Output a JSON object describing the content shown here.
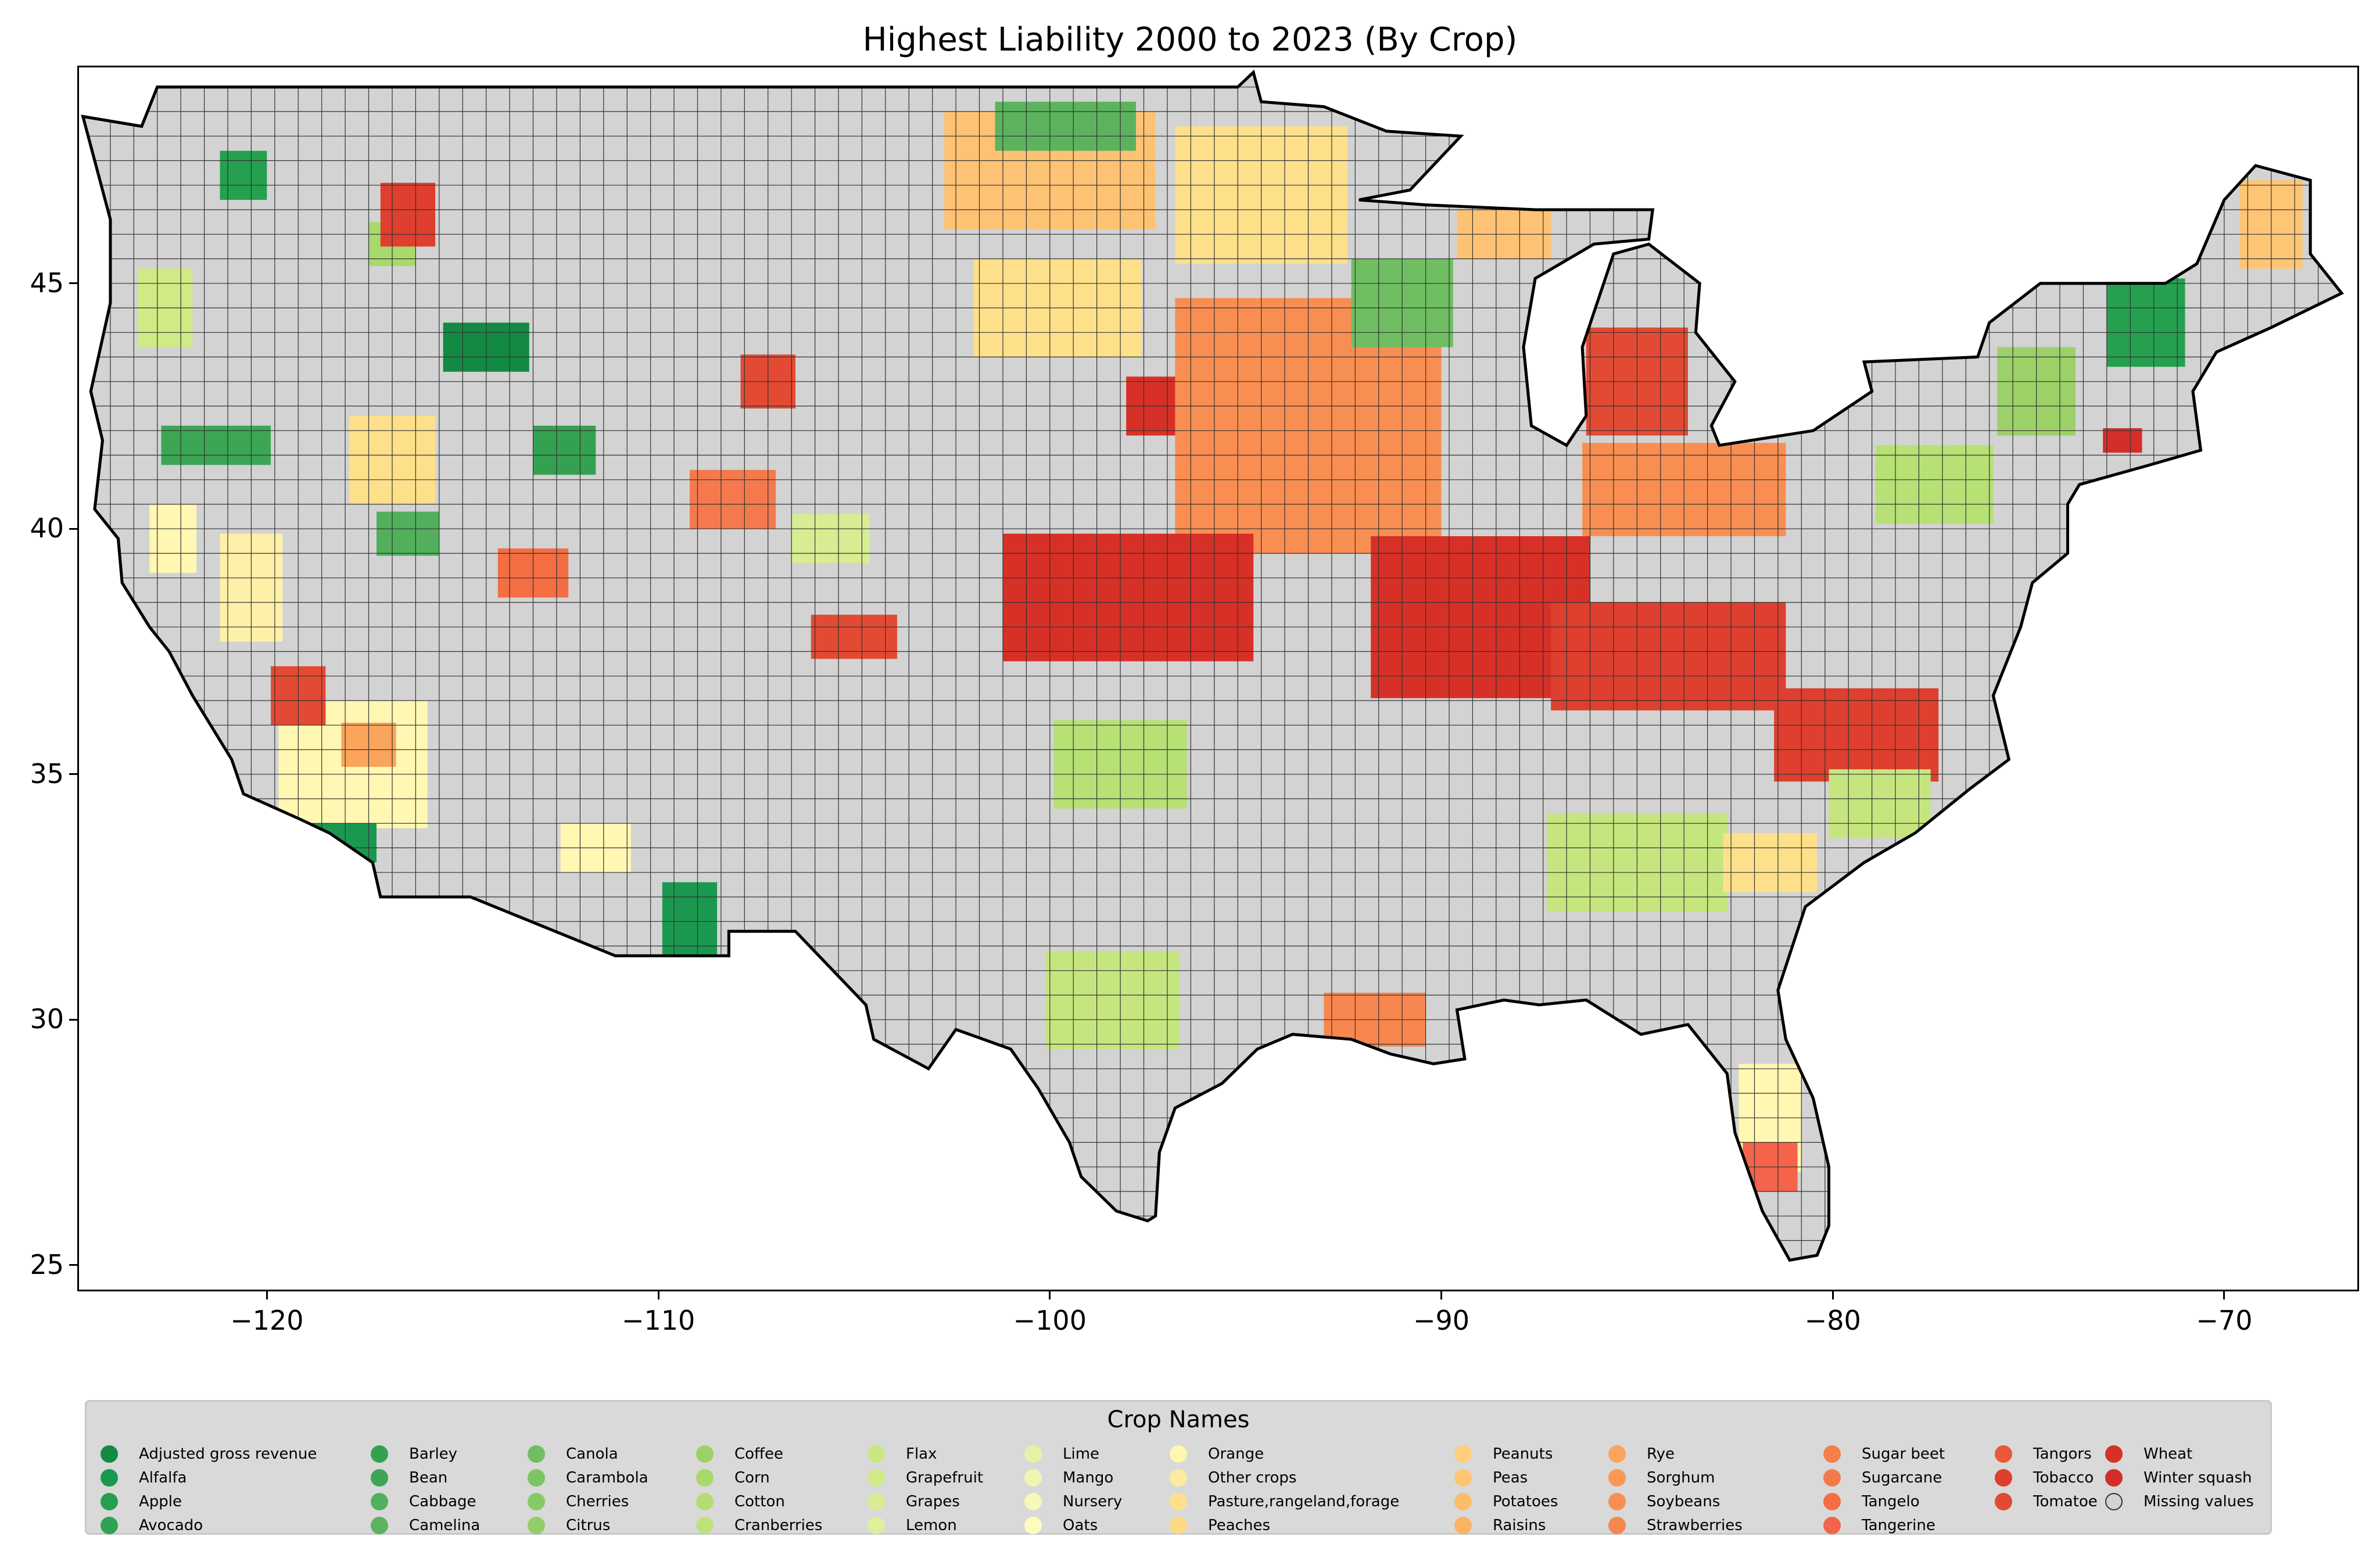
{
  "title": "Highest Liability 2000 to 2023 (By Crop)",
  "map": {
    "lon_range": [
      -124.8,
      -66.6
    ],
    "lat_range": [
      24.5,
      49.4
    ],
    "x_ticks": [
      "−120",
      "−110",
      "−100",
      "−90",
      "−80",
      "−70"
    ],
    "x_tick_values": [
      -120,
      -110,
      -100,
      -90,
      -80,
      -70
    ],
    "y_ticks": [
      "45",
      "40",
      "35",
      "30",
      "25"
    ],
    "y_tick_values": [
      45,
      40,
      35,
      30,
      25
    ],
    "land_color": "#d3d3d3",
    "border_color": "#000000",
    "regions": [
      {
        "crop": "Wheat",
        "color": "#d73027",
        "lon": -96.8,
        "lat": 42.5,
        "w": 2.5,
        "h": 1.2
      },
      {
        "crop": "Soybeans",
        "color": "#f98e52",
        "lon": -93.4,
        "lat": 42.1,
        "w": 6.8,
        "h": 5.2
      },
      {
        "crop": "Wheat",
        "color": "#d73027",
        "lon": -89.0,
        "lat": 38.2,
        "w": 5.6,
        "h": 3.3
      },
      {
        "crop": "Tobacco",
        "color": "#de3f2e",
        "lon": -84.2,
        "lat": 37.4,
        "w": 6.0,
        "h": 2.2
      },
      {
        "crop": "Tobacco",
        "color": "#de3f2e",
        "lon": -79.4,
        "lat": 35.8,
        "w": 4.2,
        "h": 1.9
      },
      {
        "crop": "Soybeans",
        "color": "#f98e52",
        "lon": -83.8,
        "lat": 40.8,
        "w": 5.2,
        "h": 1.9
      },
      {
        "crop": "Corn",
        "color": "#b7e075",
        "lon": -77.4,
        "lat": 40.9,
        "w": 3.0,
        "h": 1.6
      },
      {
        "crop": "Other crops",
        "color": "#fee08b",
        "lon": -94.6,
        "lat": 46.8,
        "w": 4.4,
        "h": 2.8
      },
      {
        "crop": "Peanuts",
        "color": "#fdc273",
        "lon": -100.0,
        "lat": 47.3,
        "w": 5.4,
        "h": 2.4
      },
      {
        "crop": "Pasture,rangeland,forage",
        "color": "#fee08b",
        "lon": -99.8,
        "lat": 44.5,
        "w": 4.3,
        "h": 2.0
      },
      {
        "crop": "Wheat",
        "color": "#d73027",
        "lon": -98.0,
        "lat": 38.6,
        "w": 6.4,
        "h": 2.6
      },
      {
        "crop": "Corn",
        "color": "#b7e075",
        "lon": -98.2,
        "lat": 35.2,
        "w": 3.4,
        "h": 1.8
      },
      {
        "crop": "Cotton",
        "color": "#c5e67e",
        "lon": -98.4,
        "lat": 30.4,
        "w": 3.4,
        "h": 2.0
      },
      {
        "crop": "Strawberries",
        "color": "#f8864f",
        "lon": -91.7,
        "lat": 30.0,
        "w": 2.6,
        "h": 1.1
      },
      {
        "crop": "Orange",
        "color": "#fff7b2",
        "lon": -81.6,
        "lat": 28.0,
        "w": 1.6,
        "h": 2.2
      },
      {
        "crop": "Tangerine",
        "color": "#f4634a",
        "lon": -81.6,
        "lat": 27.0,
        "w": 1.4,
        "h": 1.0
      },
      {
        "crop": "Cotton",
        "color": "#c5e67e",
        "lon": -85.0,
        "lat": 33.2,
        "w": 4.6,
        "h": 2.0
      },
      {
        "crop": "Cotton",
        "color": "#c5e67e",
        "lon": -78.8,
        "lat": 34.4,
        "w": 2.6,
        "h": 1.4
      },
      {
        "crop": "Peaches",
        "color": "#fee08b",
        "lon": -81.6,
        "lat": 33.2,
        "w": 2.4,
        "h": 1.2
      },
      {
        "crop": "Orange",
        "color": "#fff7b2",
        "lon": -117.8,
        "lat": 35.2,
        "w": 3.8,
        "h": 2.6
      },
      {
        "crop": "Mango",
        "color": "#fff0a8",
        "lon": -120.4,
        "lat": 38.8,
        "w": 1.6,
        "h": 2.2
      },
      {
        "crop": "Nursery",
        "color": "#fff7b2",
        "lon": -122.4,
        "lat": 39.8,
        "w": 1.2,
        "h": 1.4
      },
      {
        "crop": "Rye",
        "color": "#fba45c",
        "lon": -117.4,
        "lat": 35.6,
        "w": 1.4,
        "h": 0.9
      },
      {
        "crop": "Tomatoe",
        "color": "#e34a33",
        "lon": -119.2,
        "lat": 36.6,
        "w": 1.4,
        "h": 1.2
      },
      {
        "crop": "Alfalfa",
        "color": "#1a9850",
        "lon": -118.4,
        "lat": 33.6,
        "w": 2.4,
        "h": 0.8
      },
      {
        "crop": "Apple",
        "color": "#24a04f",
        "lon": -120.6,
        "lat": 47.2,
        "w": 1.2,
        "h": 1.0
      },
      {
        "crop": "Citrus",
        "color": "#a8d96b",
        "lon": -116.8,
        "lat": 45.8,
        "w": 1.2,
        "h": 0.9
      },
      {
        "crop": "Bean",
        "color": "#3ca655",
        "lon": -121.3,
        "lat": 41.7,
        "w": 2.8,
        "h": 0.8
      },
      {
        "crop": "Flax",
        "color": "#d0ea86",
        "lon": -122.6,
        "lat": 44.5,
        "w": 1.4,
        "h": 1.6
      },
      {
        "crop": "Adjusted gross revenue",
        "color": "#138a43",
        "lon": -114.4,
        "lat": 43.7,
        "w": 2.2,
        "h": 1.0
      },
      {
        "crop": "Tobacco",
        "color": "#de3f2e",
        "lon": -116.4,
        "lat": 46.4,
        "w": 1.4,
        "h": 1.3
      },
      {
        "crop": "Barley",
        "color": "#34a150",
        "lon": -112.4,
        "lat": 41.6,
        "w": 1.6,
        "h": 1.0
      },
      {
        "crop": "Sugarcane",
        "color": "#f47a4e",
        "lon": -108.1,
        "lat": 40.6,
        "w": 2.2,
        "h": 1.2
      },
      {
        "crop": "Tomatoe",
        "color": "#e34a33",
        "lon": -107.2,
        "lat": 43.0,
        "w": 1.4,
        "h": 1.1
      },
      {
        "crop": "Pasture,rangeland,forage",
        "color": "#fee08b",
        "lon": -116.8,
        "lat": 41.4,
        "w": 2.2,
        "h": 1.8
      },
      {
        "crop": "Sugar beet",
        "color": "#f46d43",
        "lon": -113.2,
        "lat": 39.1,
        "w": 1.8,
        "h": 1.0
      },
      {
        "crop": "Cabbage",
        "color": "#52b05c",
        "lon": -116.4,
        "lat": 39.9,
        "w": 1.6,
        "h": 0.9
      },
      {
        "crop": "Alfalfa",
        "color": "#1a9850",
        "lon": -109.2,
        "lat": 31.9,
        "w": 1.4,
        "h": 1.8
      },
      {
        "crop": "Orange",
        "color": "#fff7b2",
        "lon": -111.6,
        "lat": 33.5,
        "w": 1.8,
        "h": 1.0
      },
      {
        "crop": "Tomatoe",
        "color": "#e34a33",
        "lon": -105.0,
        "lat": 37.8,
        "w": 2.2,
        "h": 0.9
      },
      {
        "crop": "Grapes",
        "color": "#d8ed92",
        "lon": -105.6,
        "lat": 39.8,
        "w": 2.0,
        "h": 1.0
      },
      {
        "crop": "Coffee",
        "color": "#9cd168",
        "lon": -74.8,
        "lat": 42.8,
        "w": 2.0,
        "h": 1.8
      },
      {
        "crop": "Apple",
        "color": "#24a04f",
        "lon": -72.0,
        "lat": 44.2,
        "w": 2.0,
        "h": 1.8
      },
      {
        "crop": "Peas",
        "color": "#fdc574",
        "lon": -68.8,
        "lat": 46.2,
        "w": 1.6,
        "h": 1.8
      },
      {
        "crop": "Winter squash",
        "color": "#d42e2a",
        "lon": -72.6,
        "lat": 41.8,
        "w": 1.0,
        "h": 0.5
      },
      {
        "crop": "Tomatoe",
        "color": "#e34a33",
        "lon": -85.0,
        "lat": 43.0,
        "w": 2.6,
        "h": 2.2
      },
      {
        "crop": "Canola",
        "color": "#6fbe62",
        "lon": -91.0,
        "lat": 44.6,
        "w": 2.6,
        "h": 1.8
      },
      {
        "crop": "Peanuts",
        "color": "#fdc273",
        "lon": -88.4,
        "lat": 46.0,
        "w": 2.4,
        "h": 1.0
      },
      {
        "crop": "Camelina",
        "color": "#5cb35e",
        "lon": -99.6,
        "lat": 48.2,
        "w": 3.6,
        "h": 1.0
      }
    ]
  },
  "legend": {
    "title": "Crop Names",
    "columns": [
      [
        {
          "label": "Adjusted gross revenue",
          "color": "#138a43"
        },
        {
          "label": "Alfalfa",
          "color": "#1a9850"
        },
        {
          "label": "Apple",
          "color": "#24a04f"
        },
        {
          "label": "Avocado",
          "color": "#2ea352"
        }
      ],
      [
        {
          "label": "Barley",
          "color": "#34a150"
        },
        {
          "label": "Bean",
          "color": "#3ca655"
        },
        {
          "label": "Cabbage",
          "color": "#52b05c"
        },
        {
          "label": "Camelina",
          "color": "#5cb35e"
        }
      ],
      [
        {
          "label": "Canola",
          "color": "#6fbe62"
        },
        {
          "label": "Carambola",
          "color": "#7cc466"
        },
        {
          "label": "Cherries",
          "color": "#88c967"
        },
        {
          "label": "Citrus",
          "color": "#94cd68"
        }
      ],
      [
        {
          "label": "Coffee",
          "color": "#9cd168"
        },
        {
          "label": "Corn",
          "color": "#a9d86d"
        },
        {
          "label": "Cotton",
          "color": "#b3dd73"
        },
        {
          "label": "Cranberries",
          "color": "#bde27b"
        }
      ],
      [
        {
          "label": "Flax",
          "color": "#c9e780"
        },
        {
          "label": "Grapefruit",
          "color": "#d0ea86"
        },
        {
          "label": "Grapes",
          "color": "#d8ed92"
        },
        {
          "label": "Lemon",
          "color": "#dff09b"
        }
      ],
      [
        {
          "label": "Lime",
          "color": "#e6f3a6"
        },
        {
          "label": "Mango",
          "color": "#eef6b0"
        },
        {
          "label": "Nursery",
          "color": "#f6f9b8"
        },
        {
          "label": "Oats",
          "color": "#fefcbc"
        }
      ],
      [
        {
          "label": "Orange",
          "color": "#fff6b0"
        },
        {
          "label": "Other crops",
          "color": "#fee9a0"
        },
        {
          "label": "Pasture,rangeland,forage",
          "color": "#fee08b"
        },
        {
          "label": "Peaches",
          "color": "#fed983"
        }
      ],
      [
        {
          "label": "Peanuts",
          "color": "#fdcf7c"
        },
        {
          "label": "Peas",
          "color": "#fdc574"
        },
        {
          "label": "Potatoes",
          "color": "#fdbc6c"
        },
        {
          "label": "Raisins",
          "color": "#fcb263"
        }
      ],
      [
        {
          "label": "Rye",
          "color": "#fba45c"
        },
        {
          "label": "Sorghum",
          "color": "#fa9856"
        },
        {
          "label": "Soybeans",
          "color": "#f98e52"
        },
        {
          "label": "Strawberries",
          "color": "#f8864f"
        }
      ],
      [
        {
          "label": "Sugar beet",
          "color": "#f67e4b"
        },
        {
          "label": "Sugarcane",
          "color": "#f47a4e"
        },
        {
          "label": "Tangelo",
          "color": "#f46d43"
        },
        {
          "label": "Tangerine",
          "color": "#f4634a"
        }
      ],
      [
        {
          "label": "Tangors",
          "color": "#ea5739"
        },
        {
          "label": "Tobacco",
          "color": "#de3f2e"
        },
        {
          "label": "Tomatoe",
          "color": "#e34a33"
        }
      ],
      [
        {
          "label": "Wheat",
          "color": "#d73027"
        },
        {
          "label": "Winter squash",
          "color": "#d42e2a"
        },
        {
          "label": "Missing values",
          "color": "#d3d3d3"
        }
      ]
    ]
  }
}
